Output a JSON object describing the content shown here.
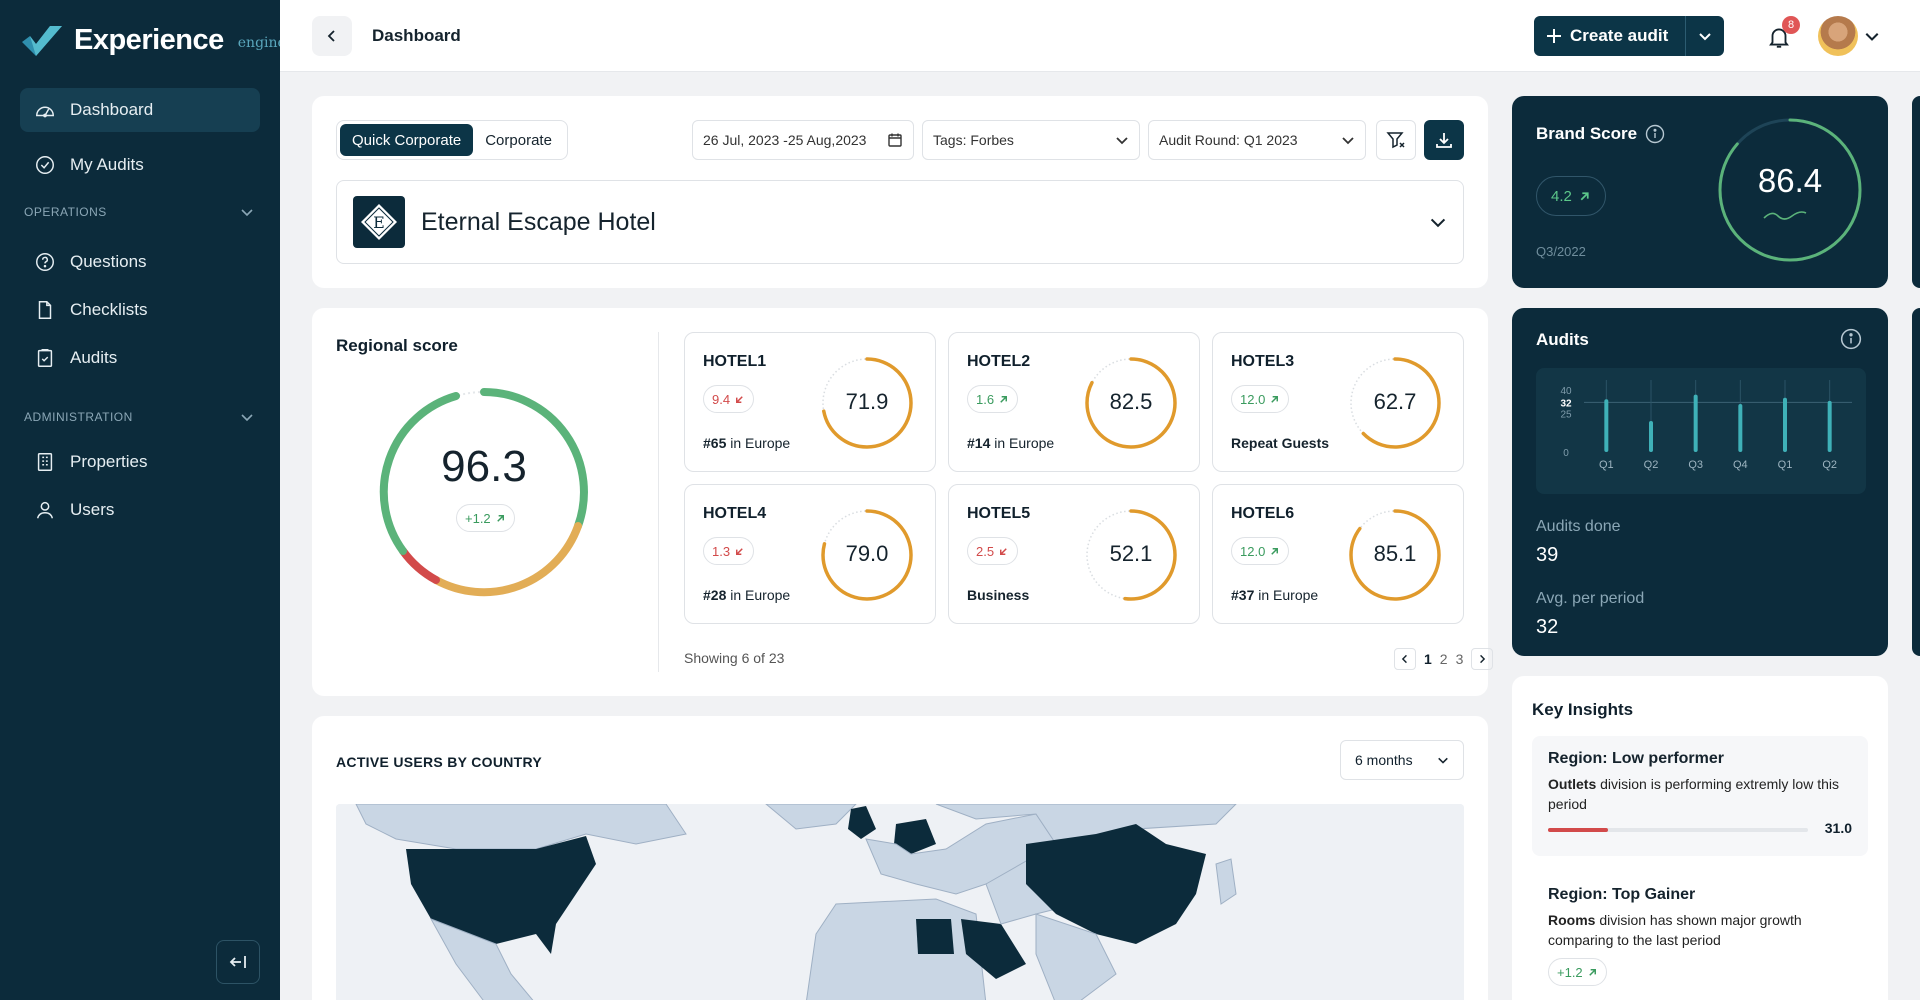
{
  "app": {
    "name": "Experience",
    "sub": "engine"
  },
  "sidebar": {
    "items": [
      {
        "label": "Dashboard"
      },
      {
        "label": "My Audits"
      },
      {
        "label": "Questions"
      },
      {
        "label": "Checklists"
      },
      {
        "label": "Audits"
      },
      {
        "label": "Properties"
      },
      {
        "label": "Users"
      }
    ],
    "sections": {
      "operations": "OPERATIONS",
      "administration": "ADMINISTRATION"
    }
  },
  "header": {
    "breadcrumb": "Dashboard",
    "create_label": "Create audit",
    "notif_count": "8"
  },
  "filters": {
    "tabs": [
      "Quick Corporate",
      "Corporate"
    ],
    "date_range": "26 Jul, 2023 -25 Aug,2023",
    "tags_label": "Tags:",
    "tags_value": "Forbes",
    "round_label": "Audit Round:",
    "round_value": "Q1 2023",
    "hotel_name": "Eternal Escape Hotel",
    "hotel_initial": "E"
  },
  "regional": {
    "title": "Regional score",
    "score": "96.3",
    "delta": "+1.2",
    "hotels": [
      {
        "name": "HOTEL1",
        "delta": "9.4",
        "dir": "down",
        "score": 71.9,
        "rank_b": "#65",
        "rank": " in Europe"
      },
      {
        "name": "HOTEL2",
        "delta": "1.6",
        "dir": "up",
        "score": 82.5,
        "rank_b": "#14",
        "rank": " in Europe"
      },
      {
        "name": "HOTEL3",
        "delta": "12.0",
        "dir": "up",
        "score": 62.7,
        "rank_b": "Repeat Guests",
        "rank": ""
      },
      {
        "name": "HOTEL4",
        "delta": "1.3",
        "dir": "down",
        "score": 79.0,
        "rank_b": "#28",
        "rank": " in Europe"
      },
      {
        "name": "HOTEL5",
        "delta": "2.5",
        "dir": "down",
        "score": 52.1,
        "rank_b": "Business",
        "rank": ""
      },
      {
        "name": "HOTEL6",
        "delta": "12.0",
        "dir": "up",
        "score": 85.1,
        "rank_b": "#37",
        "rank": " in Europe"
      }
    ],
    "showing": "Showing 6 of 23",
    "pages": [
      "1",
      "2",
      "3"
    ]
  },
  "map": {
    "title": "ACTIVE USERS BY COUNTRY",
    "period": "6 months"
  },
  "brand": {
    "title": "Brand Score",
    "delta": "4.2",
    "period": "Q3/2022",
    "score": "86.4",
    "score_pct": 86.4
  },
  "audits": {
    "title": "Audits",
    "done_label": "Audits done",
    "done": "39",
    "avg_label": "Avg. per period",
    "avg": "32",
    "chart": {
      "y_ticks": [
        "40",
        "32",
        "25",
        "0"
      ],
      "x": [
        "Q1",
        "Q2",
        "Q3",
        "Q4",
        "Q1",
        "Q2"
      ],
      "values": [
        34,
        20,
        37,
        31,
        35,
        33
      ],
      "ylim": [
        0,
        40
      ],
      "ref": 32
    }
  },
  "insights": {
    "title": "Key Insights",
    "items": [
      {
        "title": "Region: Low performer",
        "bold": "Outlets",
        "text": " division is performing extremly low this period",
        "value": "31.0"
      },
      {
        "title": "Region: Top Gainer",
        "bold": "Rooms",
        "text": " division has shown major growth comparing to the last period",
        "delta": "+1.2"
      }
    ]
  },
  "colors": {
    "navy": "#0c2b3b",
    "accent": "#0c3547",
    "green": "#5bb37a",
    "red": "#d24a4a",
    "orange": "#e09a2c"
  }
}
